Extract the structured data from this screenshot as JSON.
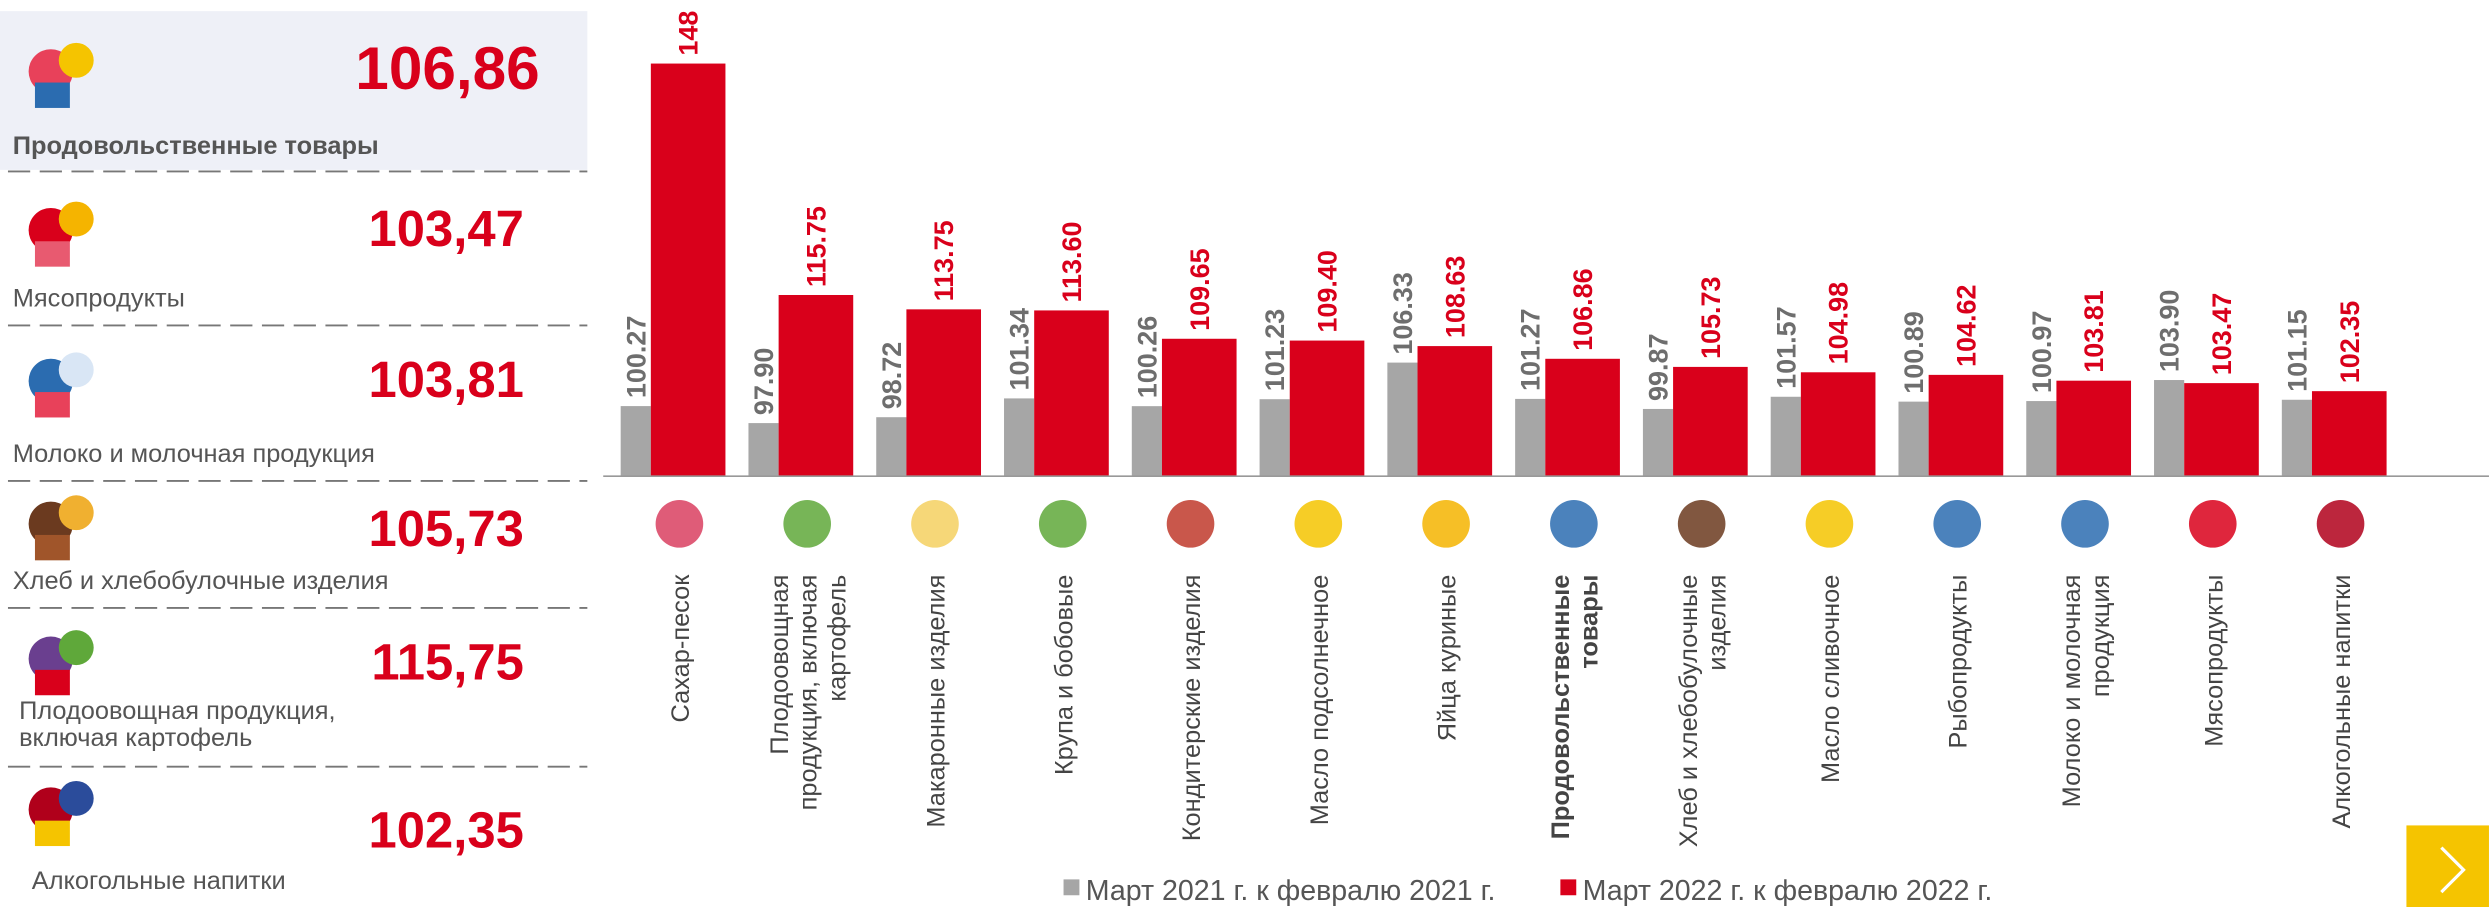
{
  "panel": {
    "items": [
      {
        "label": "Продовольственные товары",
        "value": "106,86"
      },
      {
        "label": "Мясопродукты",
        "value": "103,47"
      },
      {
        "label": "Молоко и молочная продукция",
        "value": "103,81"
      },
      {
        "label": "Хлеб и хлебобулочные изделия",
        "value": "105,73"
      },
      {
        "label": "Плодоовощная продукция,\nвключая картофель",
        "value": "115,75"
      },
      {
        "label": "Алкогольные напитки",
        "value": "102,35"
      }
    ]
  },
  "chart_data": {
    "type": "bar",
    "categories": [
      "Сахар-песок",
      "Плодоовощная\nпродукция, включая\nкартофель",
      "Макаронные изделия",
      "Крупа и бобовые",
      "Кондитерские изделия",
      "Масло подсолнечное",
      "Яйца куриные",
      "Продовольственные\nтовары",
      "Хлеб и хлебобулочные\nизделия",
      "Масло сливочное",
      "Рыбопродукты",
      "Молоко и молочная\nпродукция",
      "Мясопродукты",
      "Алкогольные напитки"
    ],
    "highlight_index": 7,
    "ylim": [
      90.5,
      150
    ],
    "series": [
      {
        "name": "Март 2021 г. к февралю 2021 г.",
        "color": "#a6a6a6",
        "label_color": "#6e6e6e",
        "values": [
          100.27,
          97.9,
          98.72,
          101.34,
          100.26,
          101.23,
          106.33,
          101.27,
          99.87,
          101.57,
          100.89,
          100.97,
          103.9,
          101.15
        ],
        "value_labels": [
          "100.27",
          "97.90",
          "98.72",
          "101.34",
          "100.26",
          "101.23",
          "106.33",
          "101.27",
          "99.87",
          "101.57",
          "100.89",
          "100.97",
          "103.90",
          "101.15"
        ]
      },
      {
        "name": "Март 2022 г. к февралю 2022 г.",
        "color": "#d9001b",
        "label_color": "#d9001b",
        "values": [
          148,
          115.75,
          113.75,
          113.6,
          109.65,
          109.4,
          108.63,
          106.86,
          105.73,
          104.98,
          104.62,
          103.81,
          103.47,
          102.35
        ],
        "value_labels": [
          "148",
          "115.75",
          "113.75",
          "113.60",
          "109.65",
          "109.40",
          "108.63",
          "106.86",
          "105.73",
          "104.98",
          "104.62",
          "103.81",
          "103.47",
          "102.35"
        ]
      }
    ]
  }
}
